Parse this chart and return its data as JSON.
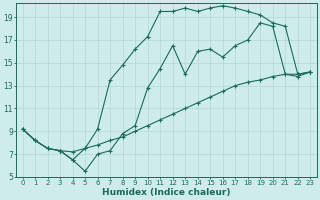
{
  "xlabel": "Humidex (Indice chaleur)",
  "background_color": "#ceecea",
  "line_color": "#1a6b5a",
  "grid_color": "#b0d8d4",
  "xlim": [
    -0.5,
    23.5
  ],
  "ylim": [
    5,
    20.2
  ],
  "xticks": [
    0,
    1,
    2,
    3,
    4,
    5,
    6,
    7,
    8,
    9,
    10,
    11,
    12,
    13,
    14,
    15,
    16,
    17,
    18,
    19,
    20,
    21,
    22,
    23
  ],
  "yticks": [
    5,
    7,
    9,
    11,
    13,
    15,
    17,
    19
  ],
  "line1_x": [
    0,
    1,
    2,
    3,
    4,
    5,
    6,
    7,
    8,
    9,
    10,
    11,
    12,
    13,
    14,
    15,
    16,
    17,
    18,
    19,
    20,
    21,
    22,
    23
  ],
  "line1_y": [
    9.2,
    8.2,
    7.5,
    7.3,
    7.2,
    7.5,
    7.8,
    8.2,
    8.5,
    9.0,
    9.5,
    10.0,
    10.5,
    11.0,
    11.5,
    12.0,
    12.5,
    13.0,
    13.3,
    13.5,
    13.8,
    14.0,
    14.0,
    14.2
  ],
  "line2_x": [
    0,
    1,
    2,
    3,
    4,
    5,
    6,
    7,
    8,
    9,
    10,
    11,
    12,
    13,
    14,
    15,
    16,
    17,
    18,
    19,
    20,
    21,
    22,
    23
  ],
  "line2_y": [
    9.2,
    8.2,
    7.5,
    7.3,
    6.5,
    5.5,
    7.0,
    7.3,
    8.8,
    9.5,
    12.8,
    14.5,
    16.5,
    14.0,
    16.0,
    16.2,
    15.5,
    16.5,
    17.0,
    18.5,
    18.2,
    14.0,
    13.8,
    14.2
  ],
  "line3_x": [
    0,
    1,
    2,
    3,
    4,
    5,
    6,
    7,
    8,
    9,
    10,
    11,
    12,
    13,
    14,
    15,
    16,
    17,
    18,
    19,
    20,
    21,
    22,
    23
  ],
  "line3_y": [
    9.2,
    8.2,
    7.5,
    7.3,
    6.5,
    7.5,
    9.2,
    13.5,
    14.8,
    16.2,
    17.3,
    19.5,
    19.5,
    19.8,
    19.5,
    19.8,
    20.0,
    19.8,
    19.5,
    19.2,
    18.5,
    18.2,
    14.0,
    14.2
  ]
}
